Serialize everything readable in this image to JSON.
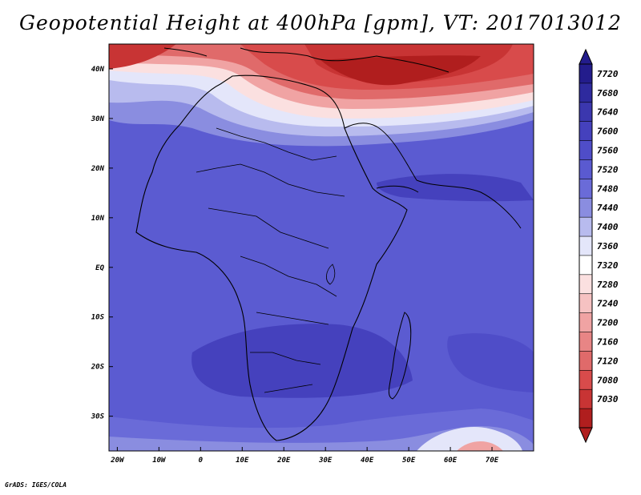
{
  "title": "Geopotential Height at 400hPa [gpm], VT: 2017013012",
  "credit": "GrADS: IGES/COLA",
  "map": {
    "lon_range": [
      -22,
      80
    ],
    "lat_range": [
      -37,
      45
    ],
    "lon_ticks": [
      {
        "v": -20,
        "label": "20W"
      },
      {
        "v": -10,
        "label": "10W"
      },
      {
        "v": 0,
        "label": "0"
      },
      {
        "v": 10,
        "label": "10E"
      },
      {
        "v": 20,
        "label": "20E"
      },
      {
        "v": 30,
        "label": "30E"
      },
      {
        "v": 40,
        "label": "40E"
      },
      {
        "v": 50,
        "label": "50E"
      },
      {
        "v": 60,
        "label": "60E"
      },
      {
        "v": 70,
        "label": "70E"
      }
    ],
    "lat_ticks": [
      {
        "v": 40,
        "label": "40N"
      },
      {
        "v": 30,
        "label": "30N"
      },
      {
        "v": 20,
        "label": "20N"
      },
      {
        "v": 10,
        "label": "10N"
      },
      {
        "v": 0,
        "label": "EQ"
      },
      {
        "v": -10,
        "label": "10S"
      },
      {
        "v": -20,
        "label": "20S"
      },
      {
        "v": -30,
        "label": "30S"
      }
    ]
  },
  "colorbar": {
    "levels": [
      "7720",
      "7680",
      "7640",
      "7600",
      "7560",
      "7520",
      "7480",
      "7440",
      "7400",
      "7360",
      "7320",
      "7280",
      "7240",
      "7200",
      "7160",
      "7120",
      "7080",
      "7030"
    ],
    "colors": [
      "#231c8c",
      "#2e2a9e",
      "#3b37ae",
      "#4541bd",
      "#4f4dc8",
      "#5a5ad0",
      "#6a6bd8",
      "#8a8de0",
      "#b8bbee",
      "#e4e6fa",
      "#ffffff",
      "#fbe0e0",
      "#f6c2c2",
      "#f0a3a3",
      "#e88585",
      "#e06a6a",
      "#d84b4b",
      "#c83434",
      "#b01e1e"
    ]
  }
}
